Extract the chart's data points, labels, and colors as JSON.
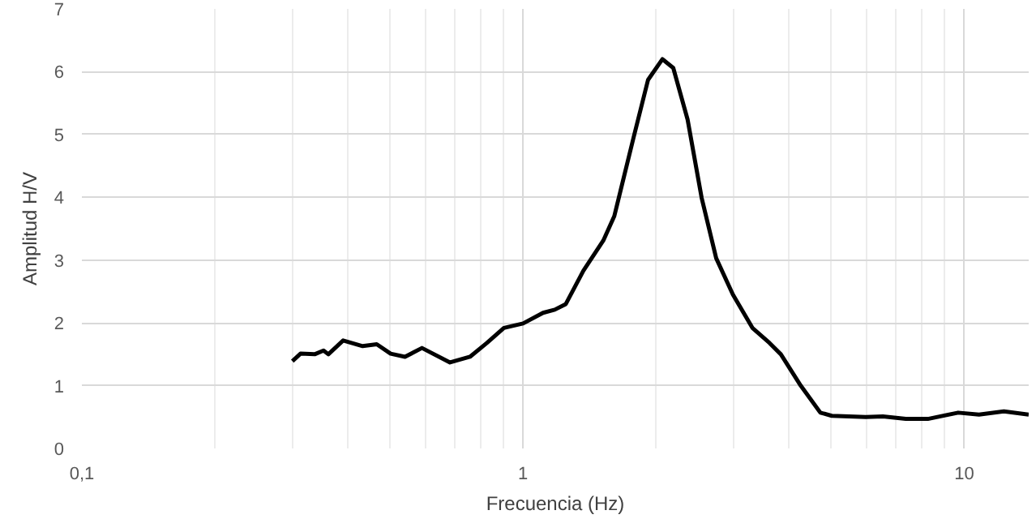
{
  "chart_data": {
    "type": "line",
    "xlabel": "Frecuencia (Hz)",
    "ylabel": "Amplitud H/V",
    "log": "x",
    "xlim": [
      0.1,
      14
    ],
    "ylim": [
      0,
      7
    ],
    "xticks": [
      {
        "value": 0.1,
        "label": "0,1"
      },
      1,
      10
    ],
    "yticks": [
      0,
      1,
      2,
      3,
      4,
      5,
      6,
      7
    ],
    "grid": true,
    "marker": "none",
    "line_style": "solid",
    "x": [
      0.3,
      0.313,
      0.337,
      0.353,
      0.362,
      0.391,
      0.433,
      0.466,
      0.501,
      0.54,
      0.59,
      0.683,
      0.758,
      0.828,
      0.905,
      1.0,
      1.11,
      1.18,
      1.25,
      1.37,
      1.52,
      1.61,
      1.78,
      1.92,
      2.07,
      2.19,
      2.36,
      2.54,
      2.74,
      2.99,
      3.31,
      3.62,
      3.84,
      4.26,
      4.72,
      5.01,
      5.98,
      6.54,
      7.37,
      8.27,
      9.69,
      10.8,
      12.3,
      14.0
    ],
    "series": [
      {
        "color": "#000000",
        "values": [
          1.39,
          1.51,
          1.5,
          1.56,
          1.5,
          1.72,
          1.63,
          1.66,
          1.51,
          1.46,
          1.6,
          1.37,
          1.46,
          1.68,
          1.92,
          1.99,
          2.16,
          2.21,
          2.3,
          2.83,
          3.31,
          3.7,
          4.95,
          5.87,
          6.2,
          6.06,
          5.24,
          3.99,
          3.03,
          2.45,
          1.92,
          1.68,
          1.5,
          1.0,
          0.57,
          0.52,
          0.5,
          0.51,
          0.47,
          0.47,
          0.57,
          0.54,
          0.59,
          0.54
        ]
      }
    ]
  }
}
